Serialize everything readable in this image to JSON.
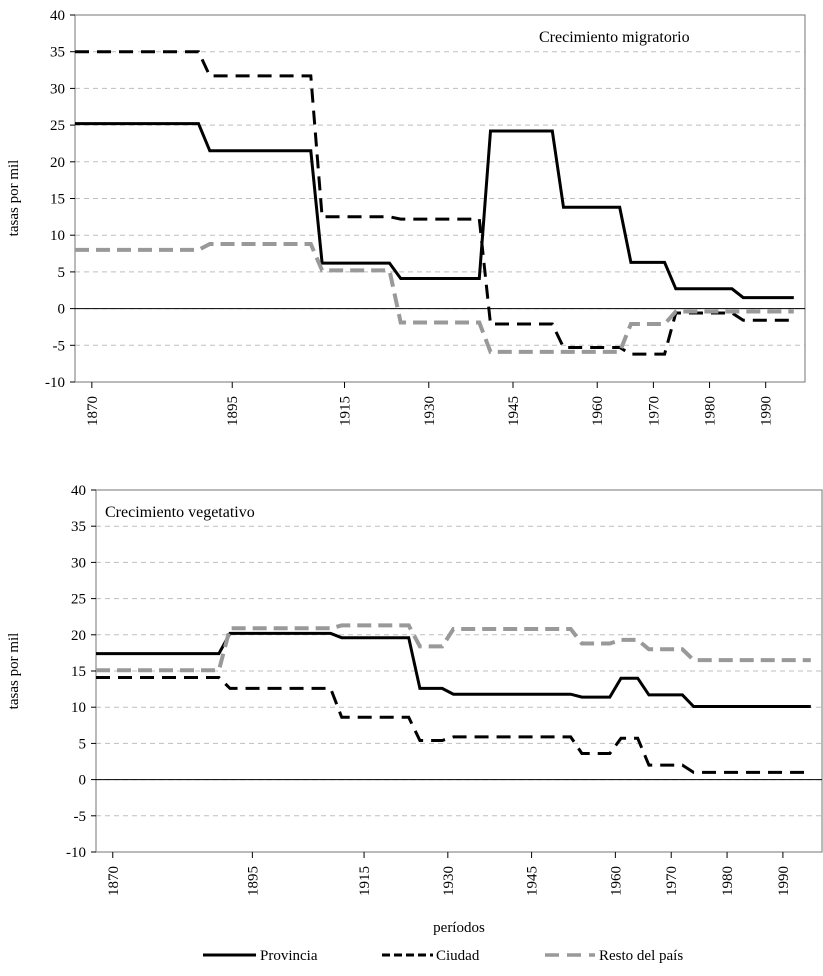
{
  "chart_data": [
    {
      "type": "line",
      "title": "Crecimiento migratorio",
      "ylabel": "tasas por mil",
      "xlabel": "",
      "ylim": [
        -10,
        40
      ],
      "yticks": [
        -10,
        -5,
        0,
        5,
        10,
        15,
        20,
        25,
        30,
        35,
        40
      ],
      "xlim": [
        1867,
        1997
      ],
      "xticks": [
        1870,
        1895,
        1915,
        1930,
        1945,
        1960,
        1970,
        1980,
        1990
      ],
      "x_positions": [
        1870,
        1895,
        1915,
        1930,
        1945,
        1960,
        1970,
        1980,
        1990
      ],
      "grid": true,
      "series": [
        {
          "name": "Provincia",
          "color": "#000000",
          "style": "solid",
          "x": [
            1867,
            1889,
            1891,
            1909,
            1911,
            1923,
            1925,
            1929,
            1931,
            1939,
            1941,
            1952,
            1954,
            1959,
            1961,
            1964,
            1966,
            1972,
            1974,
            1979,
            1981,
            1984,
            1986,
            1989,
            1991,
            1995
          ],
          "y": [
            25.2,
            25.2,
            21.5,
            21.5,
            6.2,
            6.2,
            4.1,
            4.1,
            4.1,
            4.1,
            24.2,
            24.2,
            13.8,
            13.8,
            13.8,
            13.8,
            6.3,
            6.3,
            2.7,
            2.7,
            2.7,
            2.7,
            1.5,
            1.5,
            1.5,
            1.5
          ]
        },
        {
          "name": "Ciudad",
          "color": "#000000",
          "style": "dashed",
          "x": [
            1867,
            1889,
            1891,
            1909,
            1911,
            1923,
            1925,
            1929,
            1931,
            1939,
            1941,
            1952,
            1954,
            1959,
            1961,
            1964,
            1966,
            1972,
            1974,
            1979,
            1981,
            1984,
            1986,
            1989,
            1991,
            1995
          ],
          "y": [
            35,
            35,
            31.7,
            31.7,
            12.5,
            12.5,
            12.2,
            12.2,
            12.2,
            12.2,
            -2.1,
            -2.1,
            -5.3,
            -5.3,
            -5.3,
            -5.3,
            -6.2,
            -6.2,
            -0.6,
            -0.6,
            -0.6,
            -0.6,
            -1.6,
            -1.6,
            -1.6,
            -1.6
          ]
        },
        {
          "name": "Resto del país",
          "color": "#999999",
          "style": "dashed-wide",
          "x": [
            1867,
            1889,
            1891,
            1909,
            1911,
            1923,
            1925,
            1929,
            1931,
            1939,
            1941,
            1952,
            1954,
            1959,
            1961,
            1964,
            1966,
            1972,
            1974,
            1979,
            1981,
            1984,
            1986,
            1989,
            1991,
            1995
          ],
          "y": [
            8,
            8,
            8.8,
            8.8,
            5.2,
            5.2,
            -1.9,
            -1.9,
            -1.9,
            -1.9,
            -5.9,
            -5.9,
            -5.9,
            -5.9,
            -5.9,
            -5.9,
            -2.1,
            -2.1,
            -0.4,
            -0.4,
            -0.4,
            -0.4,
            -0.4,
            -0.4,
            -0.4,
            -0.4
          ]
        }
      ]
    },
    {
      "type": "line",
      "title": "Crecimiento vegetativo",
      "ylabel": "tasas por mil",
      "xlabel": "períodos",
      "ylim": [
        -10,
        40
      ],
      "yticks": [
        -10,
        -5,
        0,
        5,
        10,
        15,
        20,
        25,
        30,
        35,
        40
      ],
      "xlim": [
        1867,
        1997
      ],
      "xticks": [
        1870,
        1895,
        1915,
        1930,
        1945,
        1960,
        1970,
        1980,
        1990
      ],
      "x_positions": [
        1870,
        1895,
        1915,
        1930,
        1945,
        1960,
        1970,
        1980,
        1990
      ],
      "grid": true,
      "series": [
        {
          "name": "Provincia",
          "color": "#000000",
          "style": "solid",
          "x": [
            1867,
            1889,
            1891,
            1909,
            1911,
            1923,
            1925,
            1929,
            1931,
            1939,
            1941,
            1952,
            1954,
            1959,
            1961,
            1964,
            1966,
            1972,
            1974,
            1979,
            1981,
            1984,
            1986,
            1989,
            1991,
            1995
          ],
          "y": [
            17.4,
            17.4,
            20.2,
            20.2,
            19.6,
            19.6,
            12.6,
            12.6,
            11.8,
            11.8,
            11.8,
            11.8,
            11.4,
            11.4,
            14.0,
            14.0,
            11.7,
            11.7,
            10.1,
            10.1,
            10.1,
            10.1,
            10.1,
            10.1,
            10.1,
            10.1
          ]
        },
        {
          "name": "Ciudad",
          "color": "#000000",
          "style": "dashed",
          "x": [
            1867,
            1889,
            1891,
            1909,
            1911,
            1923,
            1925,
            1929,
            1931,
            1939,
            1941,
            1952,
            1954,
            1959,
            1961,
            1964,
            1966,
            1972,
            1974,
            1979,
            1981,
            1984,
            1986,
            1989,
            1991,
            1995
          ],
          "y": [
            14.1,
            14.1,
            12.6,
            12.6,
            8.6,
            8.6,
            5.4,
            5.4,
            5.9,
            5.9,
            5.9,
            5.9,
            3.6,
            3.6,
            5.7,
            5.7,
            2.0,
            2.0,
            1.0,
            1.0,
            1.0,
            1.0,
            1.0,
            1.0,
            1.0,
            1.0
          ]
        },
        {
          "name": "Resto del país",
          "color": "#999999",
          "style": "dashed-wide",
          "x": [
            1867,
            1889,
            1891,
            1909,
            1911,
            1923,
            1925,
            1929,
            1931,
            1939,
            1941,
            1952,
            1954,
            1959,
            1961,
            1964,
            1966,
            1972,
            1974,
            1979,
            1981,
            1984,
            1986,
            1989,
            1991,
            1995
          ],
          "y": [
            15.1,
            15.1,
            20.9,
            20.9,
            21.3,
            21.3,
            18.4,
            18.4,
            20.8,
            20.8,
            20.8,
            20.8,
            18.8,
            18.8,
            19.3,
            19.3,
            18.0,
            18.0,
            16.5,
            16.5,
            16.5,
            16.5,
            16.5,
            16.5,
            16.5,
            16.5
          ]
        }
      ]
    }
  ],
  "legend": {
    "placement": "bottom-center",
    "items": [
      {
        "label": "Provincia",
        "color": "#000000",
        "style": "solid"
      },
      {
        "label": "Ciudad",
        "color": "#000000",
        "style": "dashed"
      },
      {
        "label": "Resto del país",
        "color": "#999999",
        "style": "dashed-wide"
      }
    ]
  }
}
